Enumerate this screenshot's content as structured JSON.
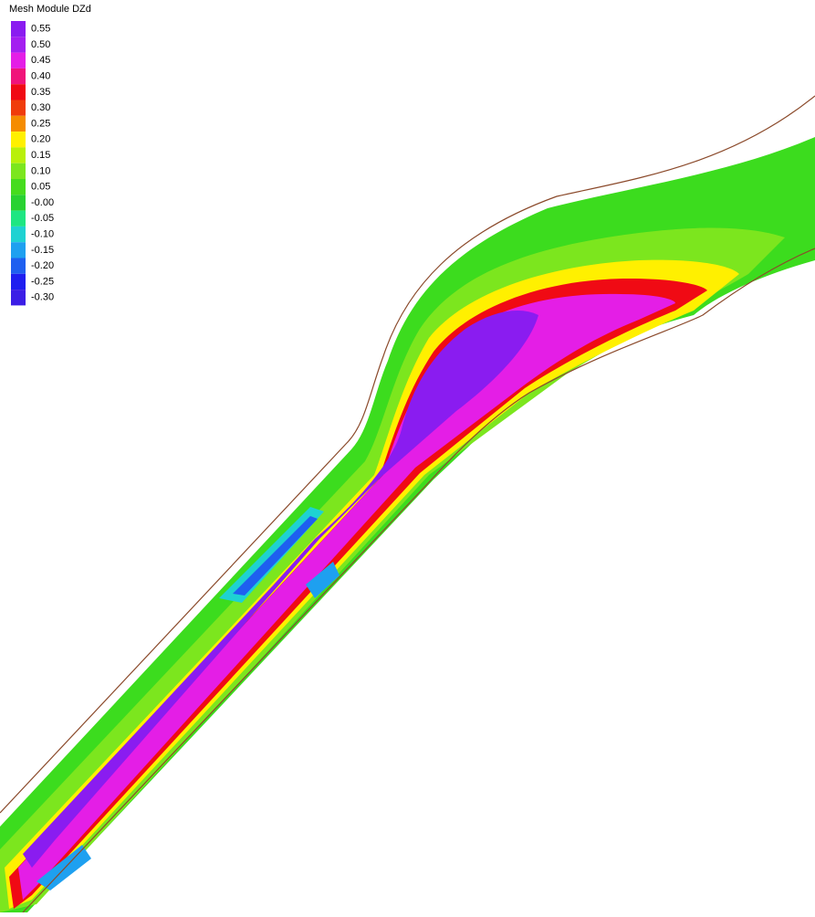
{
  "legend": {
    "title": "Mesh Module DZd",
    "entries": [
      {
        "label": "0.55",
        "color": "#8a1cf0"
      },
      {
        "label": "0.50",
        "color": "#a41ff0"
      },
      {
        "label": "0.45",
        "color": "#e41ee6"
      },
      {
        "label": "0.40",
        "color": "#f0147a"
      },
      {
        "label": "0.35",
        "color": "#f00a14"
      },
      {
        "label": "0.30",
        "color": "#f03c0a"
      },
      {
        "label": "0.25",
        "color": "#f58c00"
      },
      {
        "label": "0.20",
        "color": "#fff000"
      },
      {
        "label": "0.15",
        "color": "#b9f00a"
      },
      {
        "label": "0.10",
        "color": "#7ce61e"
      },
      {
        "label": "0.05",
        "color": "#46dc1e"
      },
      {
        "label": "-0.00",
        "color": "#28d232"
      },
      {
        "label": "-0.05",
        "color": "#1ee682"
      },
      {
        "label": "-0.10",
        "color": "#1ed2d2"
      },
      {
        "label": "-0.15",
        "color": "#1ea0f0"
      },
      {
        "label": "-0.20",
        "color": "#1e5ff0"
      },
      {
        "label": "-0.25",
        "color": "#1e1ef0"
      },
      {
        "label": "-0.30",
        "color": "#3c1ee6"
      }
    ]
  }
}
